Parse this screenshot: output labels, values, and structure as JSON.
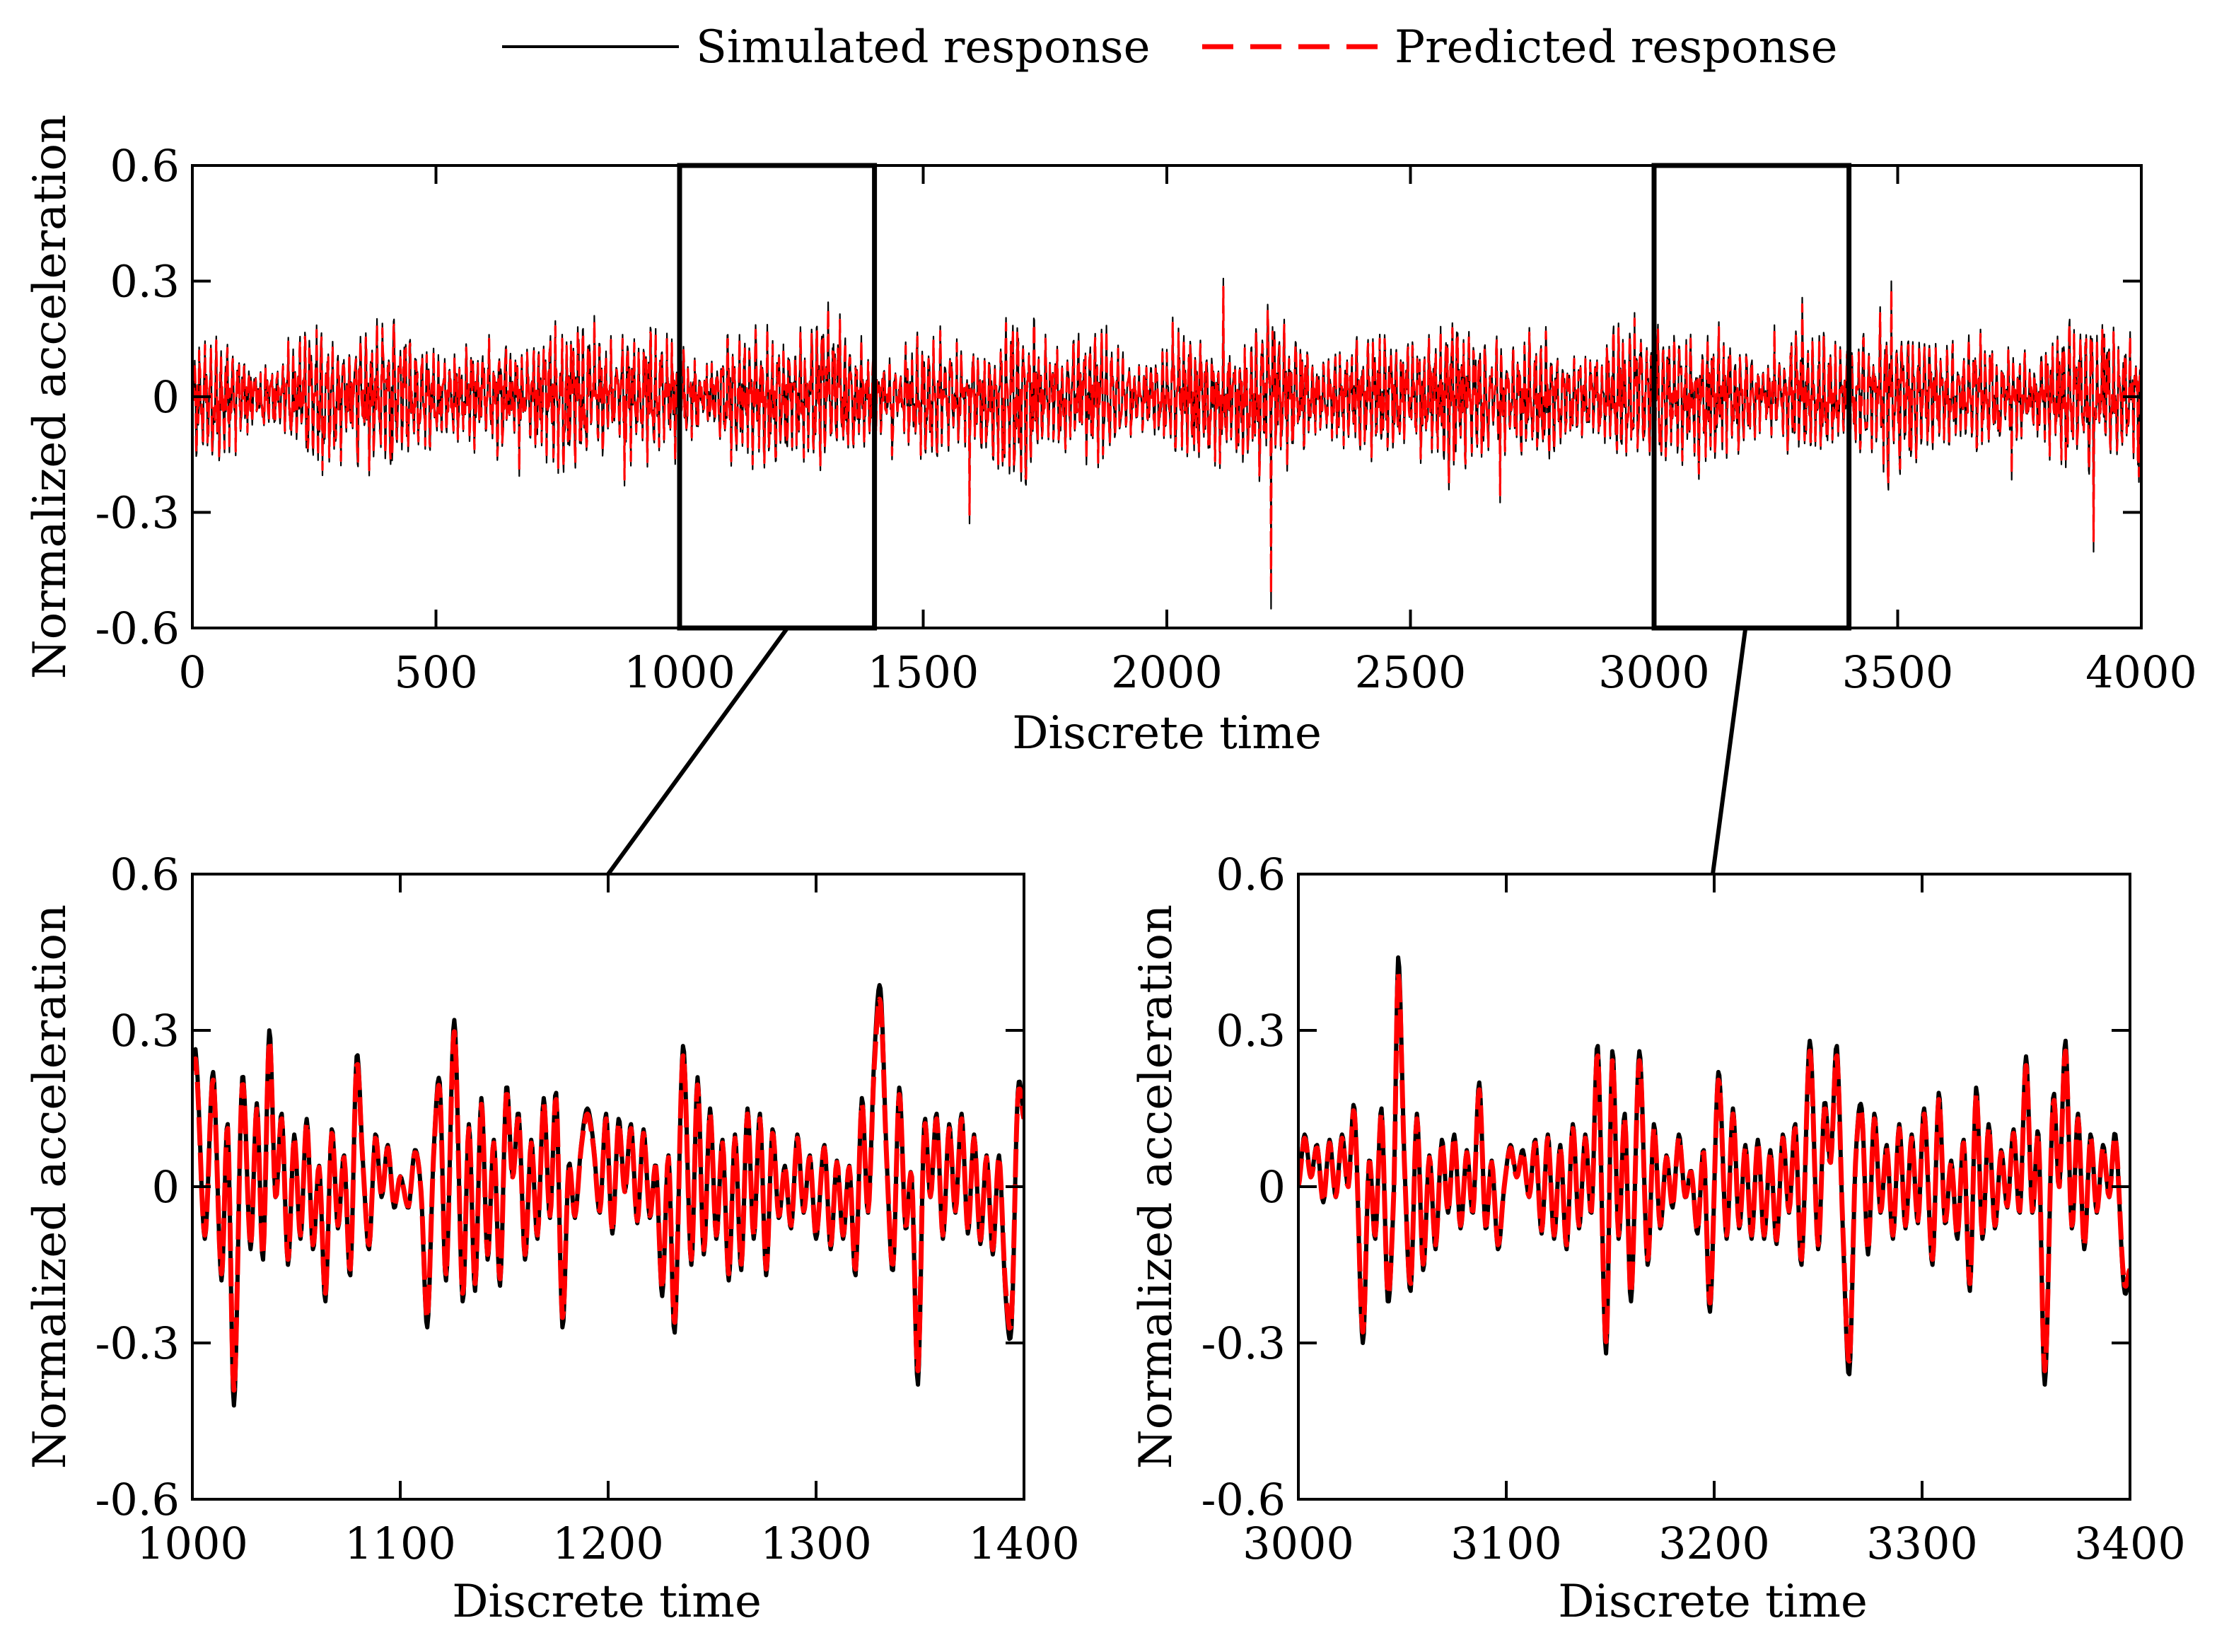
{
  "legend": {
    "simulated": "Simulated response",
    "predicted": "Predicted response"
  },
  "colors": {
    "simulated": "#000000",
    "predicted": "#ff0000",
    "zoom_box": "#000000"
  },
  "chart_data": [
    {
      "id": "overview",
      "type": "line",
      "title": "",
      "xlabel": "Discrete time",
      "ylabel": "Normalized acceleration",
      "xlim": [
        0,
        4000
      ],
      "ylim": [
        -0.6,
        0.6
      ],
      "xticks": [
        0,
        500,
        1000,
        1500,
        2000,
        2500,
        3000,
        3500,
        4000
      ],
      "xtick_labels": [
        "0",
        "500",
        "1000",
        "1500",
        "2000",
        "2500",
        "3000",
        "3500",
        "4000"
      ],
      "yticks": [
        0.6,
        0.3,
        0,
        -0.3,
        -0.6
      ],
      "ytick_labels": [
        "0.6",
        "0.3",
        "0",
        "-0.3",
        "-0.6"
      ],
      "n_points": 4000,
      "amplitude": 0.17,
      "seed": 11,
      "series": [
        {
          "name": "Simulated response",
          "style": "solid"
        },
        {
          "name": "Predicted response",
          "style": "dashed"
        }
      ],
      "highlights": [
        {
          "x": [
            1000,
            1400
          ],
          "y": [
            -0.6,
            0.6
          ]
        },
        {
          "x": [
            3000,
            3400
          ],
          "y": [
            -0.6,
            0.6
          ]
        }
      ]
    },
    {
      "id": "zoom1",
      "type": "line",
      "title": "",
      "xlabel": "Discrete time",
      "ylabel": "Normalized acceleration",
      "xlim": [
        1000,
        1400
      ],
      "ylim": [
        -0.6,
        0.6
      ],
      "xticks": [
        1000,
        1100,
        1200,
        1300,
        1400
      ],
      "xtick_labels": [
        "1000",
        "1100",
        "1200",
        "1300",
        "1400"
      ],
      "yticks": [
        0.6,
        0.3,
        0,
        -0.3,
        -0.6
      ],
      "ytick_labels": [
        "0.6",
        "0.3",
        "0",
        "-0.3",
        "-0.6"
      ],
      "series": [
        {
          "name": "Simulated response",
          "style": "solid"
        },
        {
          "name": "Predicted response",
          "style": "dashed"
        }
      ],
      "keypoints": [
        [
          1000,
          0.24
        ],
        [
          1002,
          0.24
        ],
        [
          1006,
          -0.1
        ],
        [
          1010,
          0.22
        ],
        [
          1014,
          -0.18
        ],
        [
          1017,
          0.12
        ],
        [
          1020,
          -0.42
        ],
        [
          1024,
          0.21
        ],
        [
          1028,
          -0.12
        ],
        [
          1031,
          0.16
        ],
        [
          1034,
          -0.14
        ],
        [
          1037,
          0.3
        ],
        [
          1040,
          -0.02
        ],
        [
          1043,
          0.14
        ],
        [
          1046,
          -0.15
        ],
        [
          1049,
          0.1
        ],
        [
          1052,
          -0.1
        ],
        [
          1055,
          0.13
        ],
        [
          1058,
          -0.12
        ],
        [
          1061,
          0.04
        ],
        [
          1064,
          -0.22
        ],
        [
          1067,
          0.11
        ],
        [
          1070,
          -0.08
        ],
        [
          1073,
          0.06
        ],
        [
          1076,
          -0.17
        ],
        [
          1079,
          0.25
        ],
        [
          1082,
          0.05
        ],
        [
          1085,
          -0.12
        ],
        [
          1088,
          0.1
        ],
        [
          1091,
          -0.02
        ],
        [
          1094,
          0.08
        ],
        [
          1097,
          -0.04
        ],
        [
          1100,
          0.02
        ],
        [
          1104,
          -0.04
        ],
        [
          1107,
          0.07
        ],
        [
          1110,
          -0.01
        ],
        [
          1113,
          -0.27
        ],
        [
          1116,
          0.06
        ],
        [
          1119,
          0.2
        ],
        [
          1122,
          -0.18
        ],
        [
          1126,
          0.32
        ],
        [
          1130,
          -0.22
        ],
        [
          1133,
          0.12
        ],
        [
          1136,
          -0.2
        ],
        [
          1139,
          0.17
        ],
        [
          1142,
          -0.14
        ],
        [
          1145,
          0.09
        ],
        [
          1148,
          -0.19
        ],
        [
          1151,
          0.19
        ],
        [
          1154,
          0.02
        ],
        [
          1157,
          0.14
        ],
        [
          1160,
          -0.14
        ],
        [
          1163,
          0.09
        ],
        [
          1166,
          -0.1
        ],
        [
          1169,
          0.17
        ],
        [
          1172,
          -0.06
        ],
        [
          1175,
          0.18
        ],
        [
          1178,
          -0.27
        ],
        [
          1181,
          0.04
        ],
        [
          1184,
          -0.06
        ],
        [
          1187,
          0.08
        ],
        [
          1190,
          0.15
        ],
        [
          1193,
          0.08
        ],
        [
          1196,
          -0.05
        ],
        [
          1199,
          0.14
        ],
        [
          1202,
          -0.09
        ],
        [
          1205,
          0.13
        ],
        [
          1208,
          -0.01
        ],
        [
          1211,
          0.12
        ],
        [
          1214,
          -0.07
        ],
        [
          1217,
          0.11
        ],
        [
          1220,
          -0.06
        ],
        [
          1223,
          0.04
        ],
        [
          1226,
          -0.21
        ],
        [
          1229,
          0.06
        ],
        [
          1232,
          -0.28
        ],
        [
          1236,
          0.27
        ],
        [
          1240,
          -0.15
        ],
        [
          1243,
          0.21
        ],
        [
          1246,
          -0.13
        ],
        [
          1249,
          0.15
        ],
        [
          1252,
          -0.1
        ],
        [
          1255,
          0.09
        ],
        [
          1258,
          -0.18
        ],
        [
          1261,
          0.1
        ],
        [
          1264,
          -0.16
        ],
        [
          1267,
          0.15
        ],
        [
          1270,
          -0.1
        ],
        [
          1273,
          0.14
        ],
        [
          1276,
          -0.17
        ],
        [
          1279,
          0.11
        ],
        [
          1282,
          -0.06
        ],
        [
          1285,
          0.04
        ],
        [
          1288,
          -0.08
        ],
        [
          1291,
          0.1
        ],
        [
          1294,
          -0.05
        ],
        [
          1297,
          0.06
        ],
        [
          1300,
          -0.1
        ],
        [
          1304,
          0.08
        ],
        [
          1307,
          -0.12
        ],
        [
          1310,
          0.05
        ],
        [
          1313,
          -0.1
        ],
        [
          1316,
          0.04
        ],
        [
          1319,
          -0.17
        ],
        [
          1322,
          0.17
        ],
        [
          1325,
          -0.05
        ],
        [
          1328,
          0.25
        ],
        [
          1331,
          0.38
        ],
        [
          1334,
          0.05
        ],
        [
          1337,
          -0.16
        ],
        [
          1340,
          0.19
        ],
        [
          1343,
          -0.08
        ],
        [
          1346,
          0.02
        ],
        [
          1349,
          -0.38
        ],
        [
          1352,
          0.12
        ],
        [
          1355,
          -0.02
        ],
        [
          1358,
          0.14
        ],
        [
          1361,
          -0.1
        ],
        [
          1364,
          0.12
        ],
        [
          1367,
          -0.05
        ],
        [
          1370,
          0.14
        ],
        [
          1373,
          -0.09
        ],
        [
          1376,
          0.1
        ],
        [
          1379,
          -0.11
        ],
        [
          1382,
          0.06
        ],
        [
          1385,
          -0.13
        ],
        [
          1388,
          0.06
        ],
        [
          1391,
          -0.2
        ],
        [
          1394,
          -0.27
        ],
        [
          1397,
          0.18
        ],
        [
          1400,
          0.14
        ]
      ]
    },
    {
      "id": "zoom2",
      "type": "line",
      "title": "",
      "xlabel": "Discrete time",
      "ylabel": "Normalized acceleration",
      "xlim": [
        3000,
        3400
      ],
      "ylim": [
        -0.6,
        0.6
      ],
      "xticks": [
        3000,
        3100,
        3200,
        3300,
        3400
      ],
      "xtick_labels": [
        "3000",
        "3100",
        "3200",
        "3300",
        "3400"
      ],
      "yticks": [
        0.6,
        0.3,
        0,
        -0.3,
        -0.6
      ],
      "ytick_labels": [
        "0.6",
        "0.3",
        "0",
        "-0.3",
        "-0.6"
      ],
      "series": [
        {
          "name": "Simulated response",
          "style": "solid"
        },
        {
          "name": "Predicted response",
          "style": "dashed"
        }
      ],
      "keypoints": [
        [
          3000,
          0.0
        ],
        [
          3003,
          0.1
        ],
        [
          3006,
          0.02
        ],
        [
          3009,
          0.08
        ],
        [
          3012,
          -0.03
        ],
        [
          3015,
          0.09
        ],
        [
          3018,
          -0.02
        ],
        [
          3021,
          0.1
        ],
        [
          3024,
          0.0
        ],
        [
          3027,
          0.15
        ],
        [
          3031,
          -0.3
        ],
        [
          3034,
          0.05
        ],
        [
          3037,
          -0.1
        ],
        [
          3040,
          0.15
        ],
        [
          3043,
          -0.22
        ],
        [
          3046,
          0.0
        ],
        [
          3048,
          0.44
        ],
        [
          3051,
          0.05
        ],
        [
          3054,
          -0.2
        ],
        [
          3057,
          0.14
        ],
        [
          3060,
          -0.16
        ],
        [
          3063,
          0.06
        ],
        [
          3066,
          -0.12
        ],
        [
          3069,
          0.09
        ],
        [
          3072,
          -0.05
        ],
        [
          3075,
          0.1
        ],
        [
          3078,
          -0.08
        ],
        [
          3081,
          0.07
        ],
        [
          3084,
          -0.05
        ],
        [
          3087,
          0.2
        ],
        [
          3090,
          -0.08
        ],
        [
          3093,
          0.05
        ],
        [
          3096,
          -0.12
        ],
        [
          3099,
          0.0
        ],
        [
          3102,
          0.08
        ],
        [
          3105,
          0.02
        ],
        [
          3108,
          0.07
        ],
        [
          3111,
          -0.02
        ],
        [
          3114,
          0.09
        ],
        [
          3117,
          -0.09
        ],
        [
          3120,
          0.1
        ],
        [
          3123,
          -0.1
        ],
        [
          3126,
          0.08
        ],
        [
          3129,
          -0.12
        ],
        [
          3132,
          0.12
        ],
        [
          3135,
          -0.08
        ],
        [
          3138,
          0.1
        ],
        [
          3141,
          -0.05
        ],
        [
          3144,
          0.27
        ],
        [
          3148,
          -0.32
        ],
        [
          3151,
          0.26
        ],
        [
          3154,
          -0.1
        ],
        [
          3157,
          0.14
        ],
        [
          3160,
          -0.22
        ],
        [
          3164,
          0.26
        ],
        [
          3168,
          -0.15
        ],
        [
          3171,
          0.12
        ],
        [
          3174,
          -0.08
        ],
        [
          3177,
          0.06
        ],
        [
          3180,
          -0.04
        ],
        [
          3183,
          0.1
        ],
        [
          3186,
          -0.02
        ],
        [
          3189,
          0.03
        ],
        [
          3192,
          -0.09
        ],
        [
          3195,
          0.07
        ],
        [
          3198,
          -0.24
        ],
        [
          3202,
          0.22
        ],
        [
          3206,
          -0.1
        ],
        [
          3209,
          0.15
        ],
        [
          3212,
          -0.08
        ],
        [
          3215,
          0.08
        ],
        [
          3218,
          -0.1
        ],
        [
          3221,
          0.09
        ],
        [
          3224,
          -0.1
        ],
        [
          3227,
          0.07
        ],
        [
          3230,
          -0.11
        ],
        [
          3233,
          0.1
        ],
        [
          3236,
          -0.05
        ],
        [
          3239,
          0.12
        ],
        [
          3242,
          -0.15
        ],
        [
          3246,
          0.28
        ],
        [
          3250,
          -0.12
        ],
        [
          3253,
          0.16
        ],
        [
          3256,
          0.05
        ],
        [
          3259,
          0.27
        ],
        [
          3262,
          -0.1
        ],
        [
          3265,
          -0.36
        ],
        [
          3268,
          0.05
        ],
        [
          3271,
          0.15
        ],
        [
          3274,
          -0.13
        ],
        [
          3277,
          0.14
        ],
        [
          3280,
          -0.05
        ],
        [
          3283,
          0.08
        ],
        [
          3286,
          -0.1
        ],
        [
          3289,
          0.12
        ],
        [
          3292,
          -0.08
        ],
        [
          3295,
          0.1
        ],
        [
          3298,
          -0.07
        ],
        [
          3301,
          0.15
        ],
        [
          3305,
          -0.15
        ],
        [
          3308,
          0.18
        ],
        [
          3311,
          -0.07
        ],
        [
          3314,
          0.05
        ],
        [
          3317,
          -0.1
        ],
        [
          3320,
          0.09
        ],
        [
          3323,
          -0.2
        ],
        [
          3326,
          0.19
        ],
        [
          3329,
          -0.1
        ],
        [
          3332,
          0.12
        ],
        [
          3335,
          -0.08
        ],
        [
          3338,
          0.07
        ],
        [
          3341,
          -0.04
        ],
        [
          3344,
          0.11
        ],
        [
          3347,
          -0.05
        ],
        [
          3350,
          0.25
        ],
        [
          3353,
          -0.05
        ],
        [
          3356,
          0.1
        ],
        [
          3359,
          -0.38
        ],
        [
          3363,
          0.17
        ],
        [
          3366,
          0.0
        ],
        [
          3369,
          0.28
        ],
        [
          3372,
          -0.08
        ],
        [
          3375,
          0.14
        ],
        [
          3378,
          -0.12
        ],
        [
          3381,
          0.1
        ],
        [
          3384,
          -0.05
        ],
        [
          3387,
          0.08
        ],
        [
          3390,
          -0.02
        ],
        [
          3393,
          0.1
        ],
        [
          3397,
          -0.19
        ],
        [
          3400,
          -0.17
        ]
      ]
    }
  ]
}
